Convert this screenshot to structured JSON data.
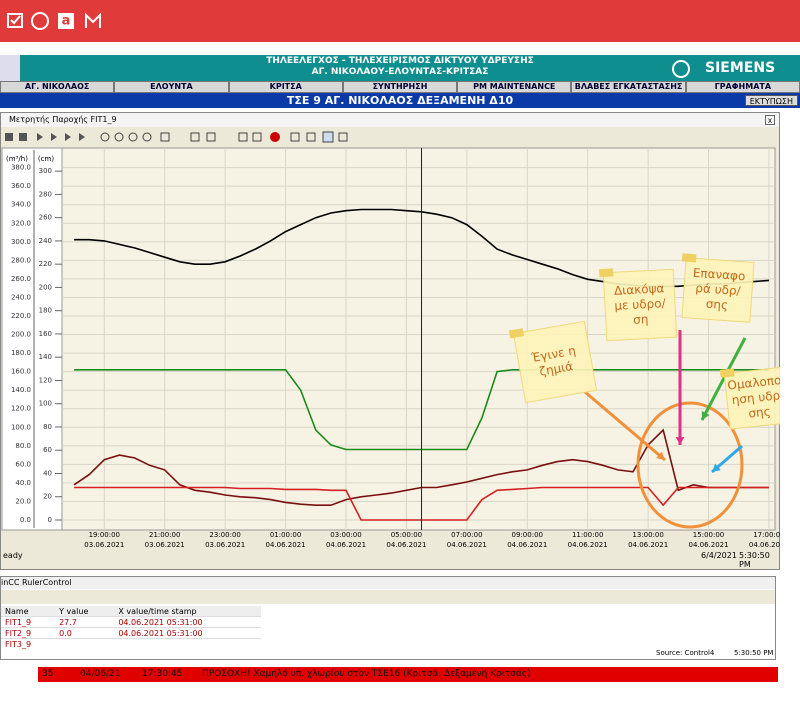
{
  "header": {
    "title_line1": "ΤΗΛΕΕΛΕΓΧΟΣ - ΤΗΛΕΧΕΙΡΙΣΜΟΣ ΔΙΚΤΥΟΥ ΥΔΡΕΥΣΗΣ",
    "title_line2": "ΑΓ. ΝΙΚΟΛΑΟΥ-ΕΛΟΥΝΤΑΣ-ΚΡΙΤΣΑΣ",
    "brand": "SIEMENS"
  },
  "nav": [
    "ΑΓ. ΝΙΚΟΛΑΟΣ",
    "ΕΛΟΥΝΤΑ",
    "ΚΡΙΤΣΑ",
    "ΣΥΝΤΗΡΗΣΗ",
    "PM MAINTENANCE",
    "ΒΛΑΒΕΣ ΕΓΚΑΤΑΣΤΑΣΗΣ",
    "ΓΡΑΦΗΜΑΤΑ"
  ],
  "page_title": "ΤΣΕ 9 ΑΓ. ΝΙΚΟΛΑΟΣ ΔΕΞΑΜΕΝΗ Δ10",
  "print_button": "ΕΚΤΥΠΩΣΗ",
  "trend_window": {
    "title": "Μετρητής Παροχής FIT1_9",
    "status": "eady",
    "date": "6/4/2021",
    "time": "5:30:50 PM"
  },
  "chart_data": {
    "type": "line",
    "ylabel": "(m³/h)",
    "y2label": "(cm)",
    "x": [
      18,
      18.5,
      19,
      19.5,
      20,
      20.5,
      21,
      21.5,
      22,
      22.5,
      23,
      23.5,
      24,
      24.5,
      25,
      25.5,
      26,
      26.5,
      27,
      27.5,
      28,
      28.5,
      29,
      29.5,
      30,
      30.5,
      31,
      31.5,
      32,
      32.5,
      33,
      33.5,
      34,
      34.5,
      35,
      35.5,
      36,
      36.5,
      37,
      37.5,
      38,
      38.5,
      39,
      39.5,
      40,
      40.5,
      41
    ],
    "xlim": [
      17.6,
      41.2
    ],
    "xticks": [
      {
        "value": 19,
        "label": "19:00:00"
      },
      {
        "value": 21,
        "label": "21:00:00"
      },
      {
        "value": 23,
        "label": "23:00:00"
      },
      {
        "value": 25,
        "label": "01:00:00"
      },
      {
        "value": 27,
        "label": "03:00:00"
      },
      {
        "value": 29,
        "label": "05:00:00"
      },
      {
        "value": 31,
        "label": "07:00:00"
      },
      {
        "value": 33,
        "label": "09:00:00"
      },
      {
        "value": 35,
        "label": "11:00:00"
      },
      {
        "value": 37,
        "label": "13:00:00"
      },
      {
        "value": 39,
        "label": "15:00:00"
      },
      {
        "value": 41,
        "label": "17:00:00"
      }
    ],
    "xtick_dates": [
      "03.06.2021",
      "03.06.2021",
      "03.06.2021",
      "04.06.2021",
      "04.06.2021",
      "04.06.2021",
      "04.06.2021",
      "04.06.2021",
      "04.06.2021",
      "04.06.2021",
      "04.06.2021",
      "04.06.2021"
    ],
    "ylim": [
      0,
      385
    ],
    "yticks": [
      {
        "value": 0,
        "label": "0.0"
      },
      {
        "value": 20,
        "label": "20.0"
      },
      {
        "value": 40,
        "label": "40.0"
      },
      {
        "value": 60,
        "label": "60.0"
      },
      {
        "value": 80,
        "label": "80.0"
      },
      {
        "value": 100,
        "label": "100.0"
      },
      {
        "value": 120,
        "label": "120.0"
      },
      {
        "value": 140,
        "label": "140.0"
      },
      {
        "value": 160,
        "label": "160.0"
      },
      {
        "value": 180,
        "label": "180.0"
      },
      {
        "value": 200,
        "label": "200.0"
      },
      {
        "value": 220,
        "label": "220.0"
      },
      {
        "value": 240,
        "label": "240.0"
      },
      {
        "value": 260,
        "label": "260.0"
      },
      {
        "value": 280,
        "label": "280.0"
      },
      {
        "value": 300,
        "label": "300.0"
      },
      {
        "value": 320,
        "label": "320.0"
      },
      {
        "value": 340,
        "label": "340.0"
      },
      {
        "value": 360,
        "label": "360.0"
      },
      {
        "value": 380,
        "label": "380.0"
      }
    ],
    "y2lim": [
      0,
      307
    ],
    "y2ticks": [
      0,
      20,
      40,
      60,
      80,
      100,
      120,
      140,
      160,
      180,
      200,
      220,
      240,
      260,
      280,
      300
    ],
    "grid": true,
    "series": [
      {
        "color": "#000000",
        "axis": "y2",
        "values": [
          241,
          241,
          240,
          237,
          234,
          230,
          226,
          222,
          220,
          220,
          222,
          227,
          233,
          240,
          248,
          254,
          260,
          264,
          266,
          267,
          267,
          267,
          266,
          265,
          263,
          260,
          254,
          244,
          233,
          228,
          224,
          220,
          216,
          211,
          207,
          205,
          203,
          202,
          201,
          201,
          201,
          202,
          203,
          203,
          204,
          205,
          206
        ]
      },
      {
        "color": "#1a8a1a",
        "values": [
          162,
          162,
          162,
          162,
          162,
          162,
          162,
          162,
          162,
          162,
          162,
          162,
          162,
          162,
          162,
          140,
          97,
          81,
          76,
          76,
          76,
          76,
          76,
          76,
          76,
          76,
          76,
          110,
          160,
          162,
          162,
          162,
          162,
          162,
          162,
          162,
          162,
          162,
          162,
          162,
          162,
          162,
          162,
          162,
          162,
          162,
          162
        ]
      },
      {
        "color": "#7a1010",
        "values": [
          38,
          49,
          65,
          70,
          67,
          59,
          54,
          38,
          32,
          30,
          27,
          25,
          24,
          22,
          19,
          17,
          16,
          16,
          22,
          25,
          27,
          29,
          32,
          35,
          35,
          38,
          41,
          45,
          49,
          52,
          54,
          59,
          63,
          65,
          63,
          59,
          54,
          52,
          81,
          97,
          32,
          38,
          35,
          35,
          35,
          35,
          35
        ]
      },
      {
        "color": "#d42020",
        "values": [
          35,
          35,
          35,
          35,
          35,
          35,
          35,
          35,
          35,
          35,
          35,
          34,
          34,
          34,
          33,
          33,
          33,
          32,
          32,
          0,
          0,
          0,
          0,
          0,
          0,
          0,
          0,
          22,
          32,
          33,
          34,
          35,
          35,
          35,
          35,
          35,
          35,
          35,
          35,
          16,
          35,
          35,
          35,
          35,
          35,
          35,
          35
        ]
      }
    ],
    "ruler": 29.5,
    "annotations": [
      {
        "lines": [
          "Έγινε η",
          "ζημιά"
        ]
      },
      {
        "lines": [
          "Διακόψα",
          "με υδρο/",
          "ση"
        ]
      },
      {
        "lines": [
          "Επαναφο",
          "ρά υδρ/",
          "σης"
        ]
      },
      {
        "lines": [
          "Ομαλοποί",
          "ηση υδρ/",
          "σης"
        ]
      }
    ]
  },
  "ruler_window": {
    "title": "inCC RulerControl",
    "columns": [
      "Name",
      "Y value",
      "X value/time stamp"
    ],
    "rows": [
      [
        "FIT1_9",
        "27.7",
        "04.06.2021 05:31:00"
      ],
      [
        "FIT2_9",
        "0.0",
        "04.06.2021 05:31:00"
      ],
      [
        "FIT3_9",
        "",
        ""
      ]
    ],
    "source": "Source: Control4",
    "time": "5:30:50 PM"
  },
  "alarm": {
    "number": "35",
    "date": "04/06/21",
    "time": "17:30:45",
    "message": "ΠΡΟΣΟΧΗ! Χαμηλό υπ. χλωρίου στον ΤΣΕ16 (Κριτσά, Δεξαμενή Κριτσάς)"
  }
}
